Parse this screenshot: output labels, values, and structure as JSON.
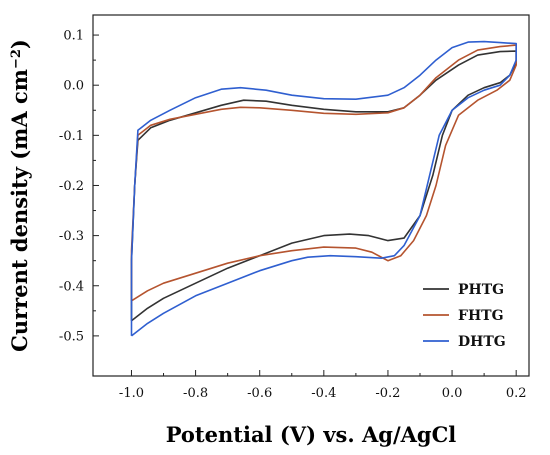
{
  "chart_data": {
    "type": "line",
    "title": "",
    "xlabel": "Potential (V) vs. Ag/AgCl",
    "ylabel": "Current density (mA cm⁻²)",
    "ylabel_main": "Current density (mA cm",
    "ylabel_sup": "−2",
    "ylabel_end": ")",
    "xlim": [
      -1.12,
      0.24
    ],
    "ylim": [
      -0.58,
      0.14
    ],
    "xticks": [
      -1.0,
      -0.8,
      -0.6,
      -0.4,
      -0.2,
      0.0,
      0.2
    ],
    "xtick_labels": [
      "-1.0",
      "-0.8",
      "-0.6",
      "-0.4",
      "-0.2",
      "0.0",
      "0.2"
    ],
    "yticks": [
      0.1,
      0.0,
      -0.1,
      -0.2,
      -0.3,
      -0.4,
      -0.5
    ],
    "ytick_labels": [
      "0.1",
      "0.0",
      "-0.1",
      "-0.2",
      "-0.3",
      "-0.4",
      "-0.5"
    ],
    "grid": false,
    "legend_position": "bottom-right",
    "series": [
      {
        "name": "PHTG",
        "color": "#333333",
        "points": [
          [
            -1.0,
            -0.47
          ],
          [
            -0.95,
            -0.445
          ],
          [
            -0.9,
            -0.425
          ],
          [
            -0.8,
            -0.395
          ],
          [
            -0.7,
            -0.365
          ],
          [
            -0.6,
            -0.34
          ],
          [
            -0.5,
            -0.315
          ],
          [
            -0.4,
            -0.3
          ],
          [
            -0.32,
            -0.297
          ],
          [
            -0.26,
            -0.3
          ],
          [
            -0.2,
            -0.31
          ],
          [
            -0.15,
            -0.305
          ],
          [
            -0.1,
            -0.26
          ],
          [
            -0.06,
            -0.18
          ],
          [
            -0.03,
            -0.1
          ],
          [
            0.0,
            -0.05
          ],
          [
            0.05,
            -0.02
          ],
          [
            0.1,
            -0.005
          ],
          [
            0.15,
            0.005
          ],
          [
            0.18,
            0.02
          ],
          [
            0.2,
            0.045
          ],
          [
            0.2,
            0.068
          ],
          [
            0.15,
            0.067
          ],
          [
            0.08,
            0.06
          ],
          [
            0.02,
            0.04
          ],
          [
            -0.05,
            0.01
          ],
          [
            -0.1,
            -0.02
          ],
          [
            -0.15,
            -0.045
          ],
          [
            -0.2,
            -0.053
          ],
          [
            -0.3,
            -0.053
          ],
          [
            -0.4,
            -0.048
          ],
          [
            -0.5,
            -0.04
          ],
          [
            -0.58,
            -0.032
          ],
          [
            -0.65,
            -0.03
          ],
          [
            -0.72,
            -0.04
          ],
          [
            -0.8,
            -0.055
          ],
          [
            -0.88,
            -0.07
          ],
          [
            -0.94,
            -0.085
          ],
          [
            -0.98,
            -0.11
          ],
          [
            -0.99,
            -0.2
          ],
          [
            -1.0,
            -0.35
          ],
          [
            -1.0,
            -0.47
          ]
        ]
      },
      {
        "name": "FHTG",
        "color": "#B5542F",
        "points": [
          [
            -1.0,
            -0.43
          ],
          [
            -0.95,
            -0.41
          ],
          [
            -0.9,
            -0.395
          ],
          [
            -0.8,
            -0.375
          ],
          [
            -0.7,
            -0.355
          ],
          [
            -0.6,
            -0.34
          ],
          [
            -0.5,
            -0.33
          ],
          [
            -0.4,
            -0.323
          ],
          [
            -0.3,
            -0.325
          ],
          [
            -0.25,
            -0.333
          ],
          [
            -0.2,
            -0.35
          ],
          [
            -0.16,
            -0.34
          ],
          [
            -0.12,
            -0.31
          ],
          [
            -0.08,
            -0.26
          ],
          [
            -0.05,
            -0.2
          ],
          [
            -0.02,
            -0.12
          ],
          [
            0.02,
            -0.06
          ],
          [
            0.08,
            -0.03
          ],
          [
            0.14,
            -0.01
          ],
          [
            0.18,
            0.01
          ],
          [
            0.2,
            0.04
          ],
          [
            0.2,
            0.08
          ],
          [
            0.15,
            0.077
          ],
          [
            0.08,
            0.07
          ],
          [
            0.02,
            0.05
          ],
          [
            -0.05,
            0.015
          ],
          [
            -0.1,
            -0.02
          ],
          [
            -0.15,
            -0.045
          ],
          [
            -0.2,
            -0.055
          ],
          [
            -0.3,
            -0.058
          ],
          [
            -0.4,
            -0.056
          ],
          [
            -0.5,
            -0.05
          ],
          [
            -0.6,
            -0.045
          ],
          [
            -0.66,
            -0.044
          ],
          [
            -0.72,
            -0.048
          ],
          [
            -0.8,
            -0.058
          ],
          [
            -0.88,
            -0.068
          ],
          [
            -0.94,
            -0.08
          ],
          [
            -0.98,
            -0.1
          ],
          [
            -0.99,
            -0.2
          ],
          [
            -1.0,
            -0.33
          ],
          [
            -1.0,
            -0.43
          ]
        ]
      },
      {
        "name": "DHTG",
        "color": "#2F5FD0",
        "points": [
          [
            -1.0,
            -0.5
          ],
          [
            -0.95,
            -0.475
          ],
          [
            -0.9,
            -0.455
          ],
          [
            -0.8,
            -0.42
          ],
          [
            -0.7,
            -0.395
          ],
          [
            -0.6,
            -0.37
          ],
          [
            -0.5,
            -0.35
          ],
          [
            -0.45,
            -0.343
          ],
          [
            -0.38,
            -0.34
          ],
          [
            -0.3,
            -0.342
          ],
          [
            -0.22,
            -0.345
          ],
          [
            -0.18,
            -0.34
          ],
          [
            -0.15,
            -0.32
          ],
          [
            -0.1,
            -0.26
          ],
          [
            -0.07,
            -0.18
          ],
          [
            -0.04,
            -0.1
          ],
          [
            0.0,
            -0.05
          ],
          [
            0.05,
            -0.025
          ],
          [
            0.1,
            -0.01
          ],
          [
            0.15,
            0.0
          ],
          [
            0.18,
            0.02
          ],
          [
            0.2,
            0.05
          ],
          [
            0.2,
            0.083
          ],
          [
            0.15,
            0.085
          ],
          [
            0.1,
            0.087
          ],
          [
            0.05,
            0.086
          ],
          [
            0.0,
            0.075
          ],
          [
            -0.05,
            0.05
          ],
          [
            -0.1,
            0.02
          ],
          [
            -0.15,
            -0.005
          ],
          [
            -0.2,
            -0.02
          ],
          [
            -0.3,
            -0.028
          ],
          [
            -0.4,
            -0.027
          ],
          [
            -0.5,
            -0.02
          ],
          [
            -0.58,
            -0.01
          ],
          [
            -0.66,
            -0.005
          ],
          [
            -0.72,
            -0.008
          ],
          [
            -0.8,
            -0.025
          ],
          [
            -0.88,
            -0.05
          ],
          [
            -0.94,
            -0.07
          ],
          [
            -0.98,
            -0.09
          ],
          [
            -0.99,
            -0.2
          ],
          [
            -1.0,
            -0.35
          ],
          [
            -1.0,
            -0.5
          ]
        ]
      }
    ]
  }
}
